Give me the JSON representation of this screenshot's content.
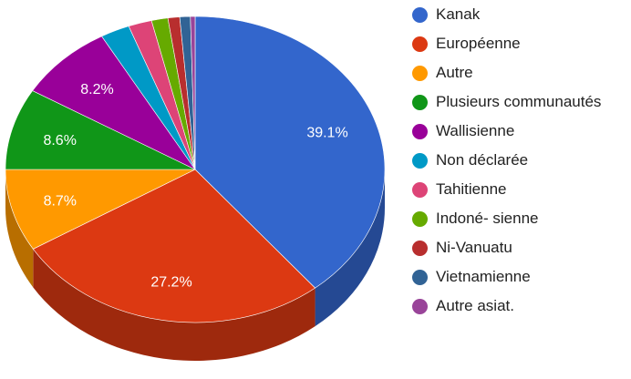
{
  "chart_data": {
    "type": "pie",
    "title": "",
    "style": "3d",
    "legend_position": "right",
    "categories": [
      "Kanak",
      "Européenne",
      "Autre",
      "Plusieurs communautés",
      "Wallisienne",
      "Non déclarée",
      "Tahitienne",
      "Indoné- sienne",
      "Ni-Vanuatu",
      "Vietnamienne",
      "Autre asiat."
    ],
    "values": [
      39.1,
      27.2,
      8.7,
      8.6,
      8.2,
      2.5,
      2.0,
      1.4,
      1.0,
      0.9,
      0.4
    ],
    "labels": [
      "39.1%",
      "27.2%",
      "8.7%",
      "8.6%",
      "8.2%",
      "",
      "",
      "",
      "",
      "",
      ""
    ],
    "colors": [
      "#3366cc",
      "#dc3912",
      "#ff9900",
      "#109618",
      "#990099",
      "#0099c6",
      "#dd4477",
      "#66aa00",
      "#b82e2e",
      "#316395",
      "#994499"
    ]
  }
}
